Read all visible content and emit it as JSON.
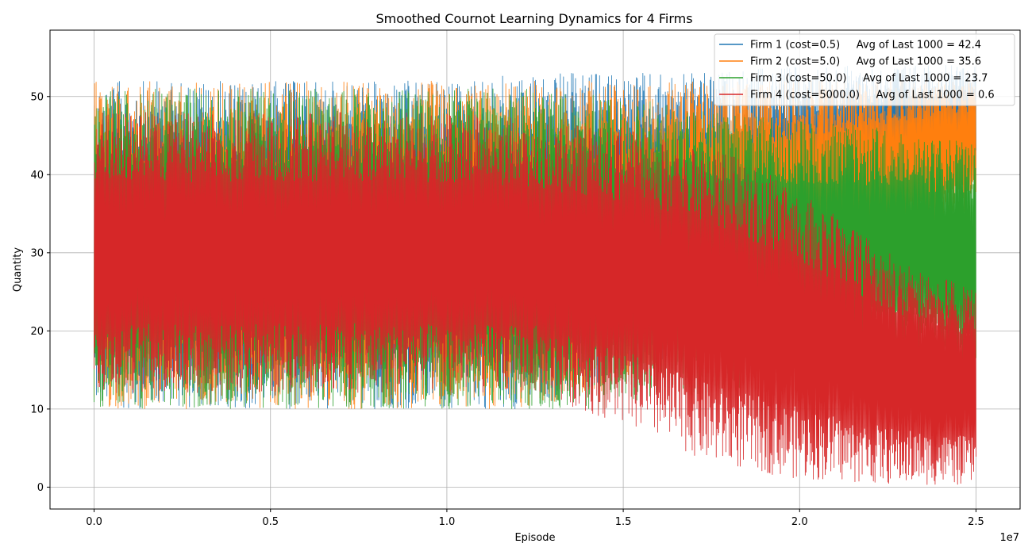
{
  "chart_data": {
    "type": "line",
    "title": "Smoothed Cournot Learning Dynamics for 4 Firms",
    "xlabel": "Episode",
    "ylabel": "Quantity",
    "x_offset_label": "1e7",
    "xlim": [
      -0.125,
      2.625
    ],
    "ylim": [
      -2.8,
      58.5
    ],
    "x_unit": "1e7 episodes",
    "xticks": [
      0.0,
      0.5,
      1.0,
      1.5,
      2.0,
      2.5
    ],
    "xtick_labels": [
      "0.0",
      "0.5",
      "1.0",
      "1.5",
      "2.0",
      "2.5"
    ],
    "yticks": [
      0,
      10,
      20,
      30,
      40,
      50
    ],
    "ytick_labels": [
      "0",
      "10",
      "20",
      "30",
      "40",
      "50"
    ],
    "grid": true,
    "legend_position": "top-right",
    "series": [
      {
        "name": "Firm 1 (cost=0.5)",
        "legend_label": "Firm 1 (cost=0.5)     Avg of Last 1000 = 42.4",
        "color": "#1f77b4",
        "x": [
          0.0,
          0.25,
          0.5,
          0.75,
          1.0,
          1.25,
          1.5,
          1.75,
          2.0,
          2.25,
          2.5
        ],
        "y_low": [
          10,
          10,
          10,
          10,
          10,
          10,
          14,
          18,
          25,
          33,
          40
        ],
        "y_high": [
          52,
          52,
          52,
          52,
          52,
          53,
          53,
          53,
          54,
          54,
          54
        ]
      },
      {
        "name": "Firm 2 (cost=5.0)",
        "legend_label": "Firm 2 (cost=5.0)     Avg of Last 1000 = 35.6",
        "color": "#ff7f0e",
        "x": [
          0.0,
          0.25,
          0.5,
          0.75,
          1.0,
          1.25,
          1.5,
          1.75,
          2.0,
          2.25,
          2.5
        ],
        "y_low": [
          10,
          10,
          10,
          10,
          10,
          10,
          13,
          17,
          22,
          30,
          36
        ],
        "y_high": [
          52,
          52,
          52,
          52,
          52,
          52,
          52,
          52,
          52,
          52,
          52
        ]
      },
      {
        "name": "Firm 3 (cost=50.0)",
        "legend_label": "Firm 3 (cost=50.0)     Avg of Last 1000 = 23.7",
        "color": "#2ca02c",
        "x": [
          0.0,
          0.25,
          0.5,
          0.75,
          1.0,
          1.25,
          1.5,
          1.75,
          2.0,
          2.25,
          2.5
        ],
        "y_low": [
          10,
          10,
          10,
          10,
          10,
          10,
          10,
          12,
          14,
          16,
          15
        ],
        "y_high": [
          51,
          51,
          51,
          51,
          51,
          51,
          50,
          48,
          47,
          46,
          44
        ]
      },
      {
        "name": "Firm 4 (cost=5000.0)",
        "legend_label": "Firm 4 (cost=5000.0)     Avg of Last 1000 = 0.6",
        "color": "#d62728",
        "x": [
          0.0,
          0.25,
          0.5,
          0.75,
          1.0,
          1.25,
          1.5,
          1.75,
          2.0,
          2.25,
          2.5
        ],
        "y_low": [
          12,
          12,
          12,
          12,
          12,
          12,
          8,
          3,
          1,
          0.3,
          0.2
        ],
        "y_high": [
          48,
          48,
          48,
          48,
          48,
          47,
          46,
          44,
          38,
          30,
          25
        ]
      }
    ]
  }
}
